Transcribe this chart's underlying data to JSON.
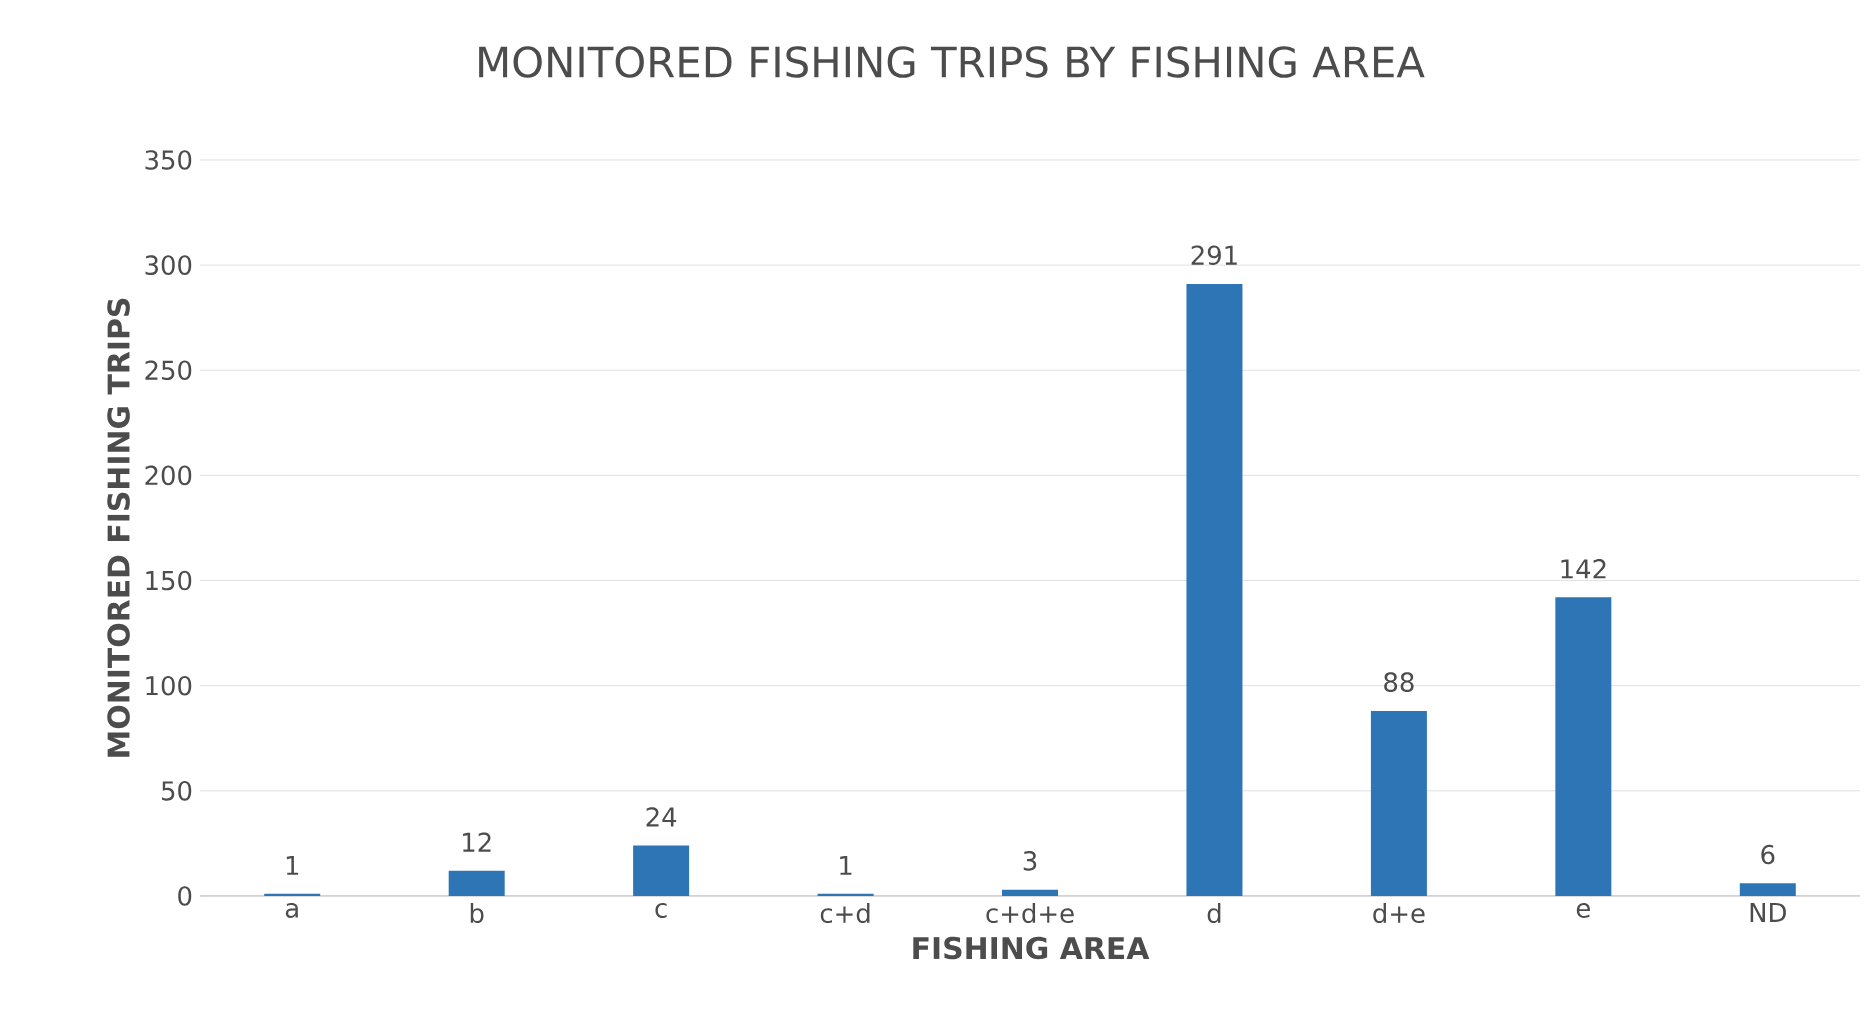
{
  "chart_data": {
    "type": "bar",
    "title": "MONITORED FISHING TRIPS BY FISHING AREA",
    "xlabel": "FISHING AREA",
    "ylabel": "MONITORED FISHING TRIPS",
    "categories": [
      "a",
      "b",
      "c",
      "c+d",
      "c+d+e",
      "d",
      "d+e",
      "e",
      "ND"
    ],
    "values": [
      1,
      12,
      24,
      1,
      3,
      291,
      88,
      142,
      6
    ],
    "color": "#2e75b6",
    "ylim": [
      0,
      350
    ],
    "yticks": [
      0,
      50,
      100,
      150,
      200,
      250,
      300,
      350
    ],
    "grid": "y",
    "data_labels": true
  }
}
